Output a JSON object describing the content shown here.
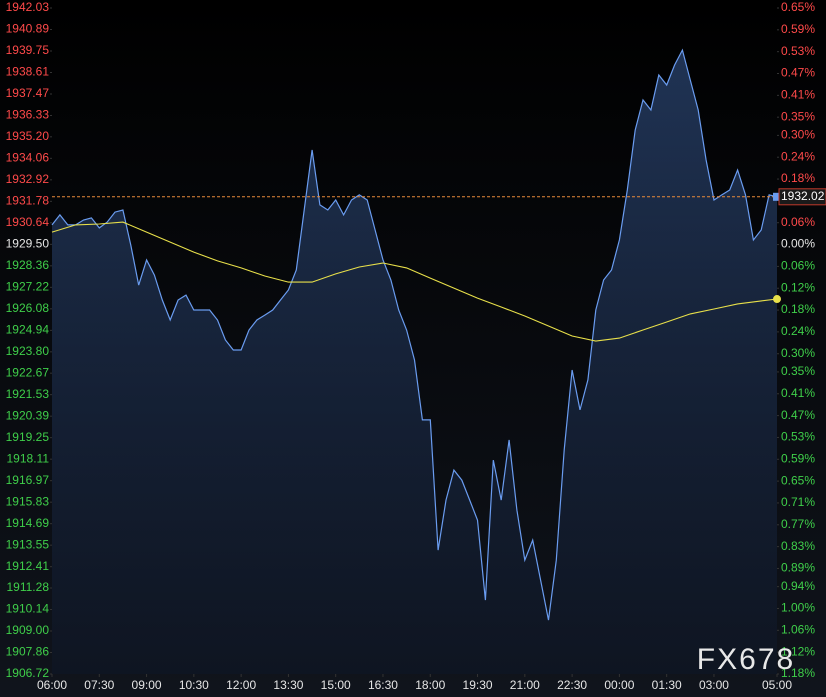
{
  "chart_data": {
    "type": "line",
    "x": [
      "06:00",
      "06:15",
      "06:30",
      "06:45",
      "07:00",
      "07:15",
      "07:30",
      "07:45",
      "08:00",
      "08:15",
      "08:30",
      "08:45",
      "09:00",
      "09:15",
      "09:30",
      "09:45",
      "10:00",
      "10:15",
      "10:30",
      "10:45",
      "11:00",
      "11:15",
      "11:30",
      "11:45",
      "12:00",
      "12:15",
      "12:30",
      "12:45",
      "13:00",
      "13:15",
      "13:30",
      "13:45",
      "14:00",
      "14:15",
      "14:30",
      "14:45",
      "15:00",
      "15:15",
      "15:30",
      "15:45",
      "16:00",
      "16:15",
      "16:30",
      "16:45",
      "17:00",
      "17:15",
      "17:30",
      "17:45",
      "18:00",
      "18:15",
      "18:30",
      "18:45",
      "19:00",
      "19:15",
      "19:30",
      "19:45",
      "20:00",
      "20:15",
      "20:30",
      "20:45",
      "21:00",
      "21:15",
      "21:30",
      "21:45",
      "22:00",
      "22:15",
      "22:30",
      "22:45",
      "23:00",
      "23:15",
      "23:30",
      "23:45",
      "00:00",
      "00:15",
      "00:30",
      "00:45",
      "01:00",
      "01:15",
      "01:30",
      "01:45",
      "02:00",
      "02:15",
      "02:30",
      "02:45",
      "03:00",
      "03:15",
      "03:30",
      "03:45",
      "04:00",
      "04:15",
      "04:30",
      "04:45",
      "05:00"
    ],
    "series": [
      {
        "color": "#6a9cf0",
        "values": [
          1930.53,
          1931.06,
          1930.53,
          1930.53,
          1930.79,
          1930.9,
          1930.37,
          1930.68,
          1931.21,
          1931.32,
          1929.46,
          1927.34,
          1928.67,
          1927.87,
          1926.55,
          1925.49,
          1926.55,
          1926.81,
          1926.02,
          1926.02,
          1926.02,
          1925.49,
          1924.43,
          1923.9,
          1923.9,
          1924.96,
          1925.49,
          1925.75,
          1926.02,
          1926.55,
          1927.08,
          1928.14,
          1931.32,
          1934.5,
          1931.59,
          1931.32,
          1931.85,
          1931.06,
          1931.85,
          1932.12,
          1931.85,
          1930.26,
          1928.67,
          1927.61,
          1926.02,
          1924.96,
          1923.37,
          1920.19,
          1920.19,
          1913.29,
          1915.94,
          1917.53,
          1917.0,
          1915.94,
          1914.88,
          1910.64,
          1918.06,
          1915.94,
          1919.13,
          1915.41,
          1912.76,
          1913.82,
          1911.7,
          1909.58,
          1912.76,
          1918.6,
          1922.84,
          1920.72,
          1922.31,
          1926.02,
          1927.61,
          1928.14,
          1929.73,
          1932.38,
          1935.56,
          1937.15,
          1936.62,
          1938.48,
          1937.95,
          1939.01,
          1939.8,
          1938.21,
          1936.62,
          1933.97,
          1931.85,
          1932.12,
          1932.38,
          1933.44,
          1932.12,
          1929.73,
          1930.26,
          1932.12,
          1932.02
        ]
      },
      {
        "color": "#e8e04a",
        "x": [
          "06:00",
          "06:45",
          "07:30",
          "08:15",
          "09:00",
          "09:45",
          "10:30",
          "11:15",
          "12:00",
          "12:45",
          "13:30",
          "14:15",
          "15:00",
          "15:45",
          "16:30",
          "17:15",
          "18:00",
          "18:45",
          "19:30",
          "20:15",
          "21:00",
          "21:45",
          "22:30",
          "23:15",
          "00:00",
          "00:45",
          "01:30",
          "02:15",
          "03:00",
          "03:45",
          "04:30",
          "05:00"
        ],
        "values": [
          1930.15,
          1930.53,
          1930.58,
          1930.68,
          1930.15,
          1929.62,
          1929.09,
          1928.62,
          1928.25,
          1927.82,
          1927.5,
          1927.5,
          1927.93,
          1928.3,
          1928.51,
          1928.25,
          1927.71,
          1927.18,
          1926.65,
          1926.18,
          1925.7,
          1925.17,
          1924.64,
          1924.37,
          1924.53,
          1924.96,
          1925.38,
          1925.81,
          1926.07,
          1926.34,
          1926.5,
          1926.6
        ]
      }
    ],
    "ylim": [
      1906.72,
      1942.03
    ],
    "yticks": [
      1942.03,
      1940.89,
      1939.75,
      1938.61,
      1937.47,
      1936.33,
      {
        "value": 1935.2,
        "label": "1935.20"
      },
      1934.06,
      1932.92,
      1931.78,
      1930.64,
      {
        "value": 1929.5,
        "label": "1929.50"
      },
      1928.36,
      1927.22,
      1926.08,
      1924.94,
      {
        "value": 1923.8,
        "label": "1923.80"
      },
      1922.67,
      1921.53,
      1920.39,
      1919.25,
      1918.11,
      1916.97,
      1915.83,
      1914.69,
      1913.55,
      1912.41,
      1911.28,
      1910.14,
      {
        "value": 1909,
        "label": "1909.00"
      },
      1907.86,
      1906.72
    ],
    "y2lim": [
      -1.18,
      0.65
    ],
    "y2ticks": [
      {
        "value": 0.65,
        "label": "0.65%"
      },
      {
        "value": 0.59,
        "label": "0.59%"
      },
      {
        "value": 0.53,
        "label": "0.53%"
      },
      {
        "value": 0.47,
        "label": "0.47%"
      },
      {
        "value": 0.41,
        "label": "0.41%"
      },
      {
        "value": 0.35,
        "label": "0.35%"
      },
      {
        "value": 0.3,
        "label": "0.30%"
      },
      {
        "value": 0.24,
        "label": "0.24%"
      },
      {
        "value": 0.18,
        "label": "0.18%"
      },
      {
        "value": 0.06,
        "label": "0.06%"
      },
      {
        "value": 0,
        "label": "0.00%"
      },
      {
        "value": -0.06,
        "label": "0.06%"
      },
      {
        "value": -0.12,
        "label": "0.12%"
      },
      {
        "value": -0.18,
        "label": "0.18%"
      },
      {
        "value": -0.24,
        "label": "0.24%"
      },
      {
        "value": -0.3,
        "label": "0.30%"
      },
      {
        "value": -0.35,
        "label": "0.35%"
      },
      {
        "value": -0.41,
        "label": "0.41%"
      },
      {
        "value": -0.47,
        "label": "0.47%"
      },
      {
        "value": -0.53,
        "label": "0.53%"
      },
      {
        "value": -0.59,
        "label": "0.59%"
      },
      {
        "value": -0.65,
        "label": "0.65%"
      },
      {
        "value": -0.71,
        "label": "0.71%"
      },
      {
        "value": -0.77,
        "label": "0.77%"
      },
      {
        "value": -0.83,
        "label": "0.83%"
      },
      {
        "value": -0.89,
        "label": "0.89%"
      },
      {
        "value": -0.94,
        "label": "0.94%"
      },
      {
        "value": -1,
        "label": "1.00%"
      },
      {
        "value": -1.06,
        "label": "1.06%"
      },
      {
        "value": -1.12,
        "label": "1.12%"
      },
      {
        "value": -1.18,
        "label": "1.18%"
      }
    ],
    "xticks": [
      "06:00",
      "07:30",
      "09:00",
      "10:30",
      "12:00",
      "13:30",
      "15:00",
      "16:30",
      "18:00",
      "19:30",
      "21:00",
      "22:30",
      "00:00",
      "01:30",
      "03:00",
      "05:00"
    ],
    "grid": false,
    "watermark": "FX678"
  }
}
